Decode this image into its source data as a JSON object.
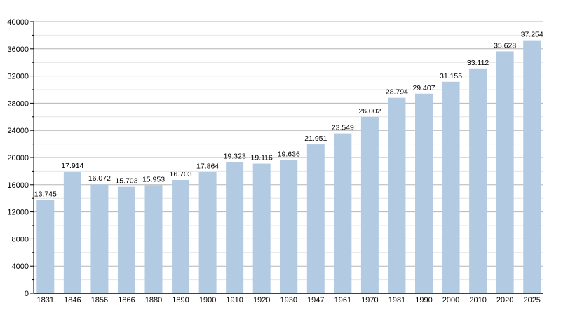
{
  "chart_data": {
    "type": "bar",
    "title": "",
    "categories": [
      "1831",
      "1846",
      "1856",
      "1866",
      "1880",
      "1890",
      "1900",
      "1910",
      "1920",
      "1930",
      "1947",
      "1961",
      "1970",
      "1981",
      "1990",
      "2000",
      "2010",
      "2020",
      "2025"
    ],
    "values": [
      13745,
      17914,
      16072,
      15703,
      15953,
      16703,
      17864,
      19323,
      19116,
      19636,
      21951,
      23549,
      26002,
      28794,
      29407,
      31155,
      33112,
      35628,
      37254
    ],
    "value_labels": [
      "13.745",
      "17.914",
      "16.072",
      "15.703",
      "15.953",
      "16.703",
      "17.864",
      "19.323",
      "19.116",
      "19.636",
      "21.951",
      "23.549",
      "26.002",
      "28.794",
      "29.407",
      "31.155",
      "33.112",
      "35.628",
      "37.254"
    ],
    "y_tick_labels": [
      "0",
      "4000",
      "8000",
      "12000",
      "16000",
      "20000",
      "24000",
      "28000",
      "32000",
      "36000",
      "40000"
    ],
    "ylim": [
      0,
      40000
    ],
    "y_major_step": 4000,
    "y_minor_step": 2000,
    "grid": true,
    "legend": "none",
    "xlabel": "",
    "ylabel": "",
    "colors": {
      "bar_fill": "#b2cbe3",
      "axis": "#000000",
      "major_grid": "#b5b5b5",
      "minor_grid": "#e4e4e4",
      "text": "#000000",
      "background": "#ffffff"
    }
  }
}
